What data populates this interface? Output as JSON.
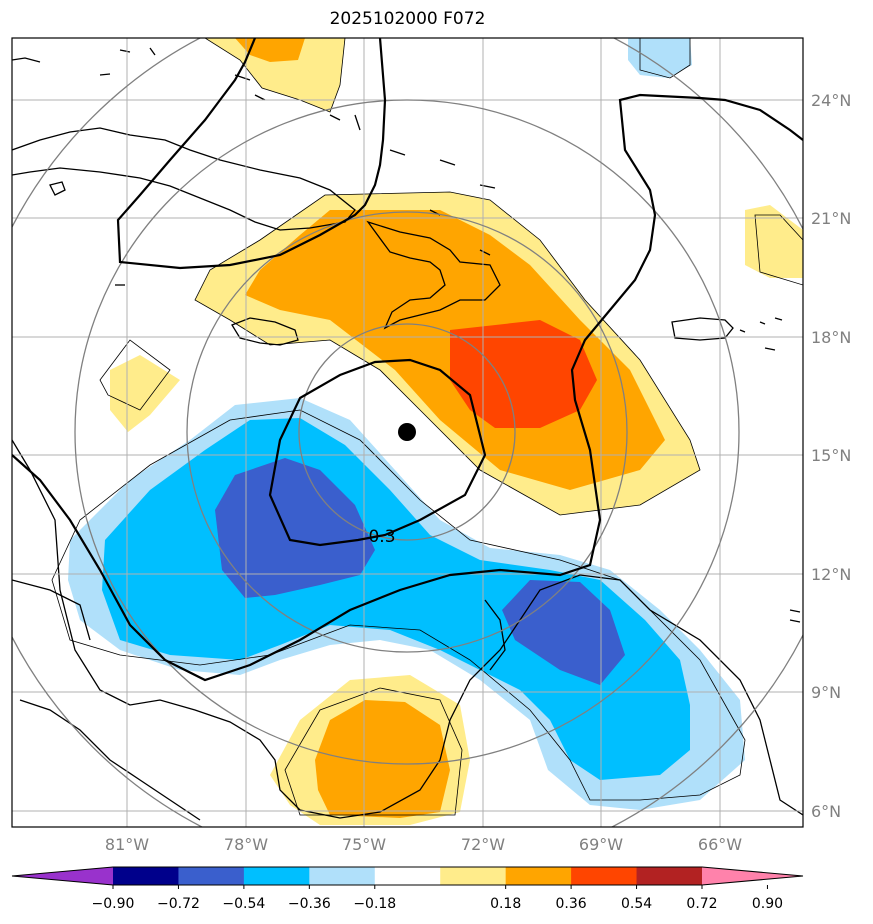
{
  "title": "2025102000 F072",
  "contour_label": "0.3",
  "lat_labels": [
    "24°N",
    "21°N",
    "18°N",
    "15°N",
    "12°N",
    "9°N",
    "6°N"
  ],
  "lon_labels": [
    "81°W",
    "78°W",
    "75°W",
    "72°W",
    "69°W",
    "66°W"
  ],
  "colorbar": {
    "ticks": [
      "−0.90",
      "−0.72",
      "−0.54",
      "−0.36",
      "−0.18",
      "0.18",
      "0.36",
      "0.54",
      "0.72",
      "0.90"
    ],
    "colors": [
      "#9932cc",
      "#00008b",
      "#3a5fcd",
      "#00bfff",
      "#b0e0fa",
      "#ffffff",
      "#ffec8b",
      "#ffa500",
      "#ff4500",
      "#b22222",
      "#ff82ab"
    ]
  },
  "colors": {
    "warm_1": "#ffec8b",
    "warm_2": "#ffa500",
    "warm_3": "#ff4500",
    "cool_1": "#b0e0fa",
    "cool_2": "#00bfff",
    "cool_3": "#3a5fcd",
    "range_rings": "#808080",
    "gridlines": "#b0b0b0"
  }
}
